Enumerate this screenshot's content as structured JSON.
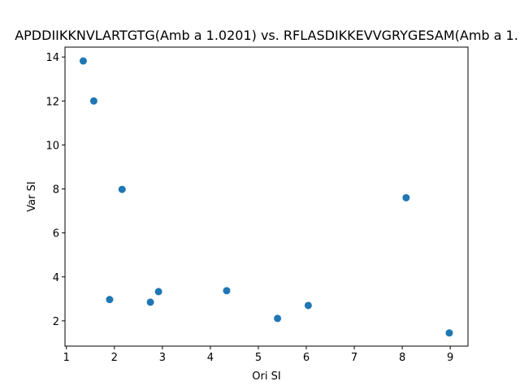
{
  "chart_data": {
    "type": "scatter",
    "title": "APDDIIKKNVLARTGTG(Amb a 1.0201) vs. RFLASDIKKEVVGRYGESAM(Amb a 1.",
    "xlabel": "Ori SI",
    "ylabel": "Var SI",
    "xlim": [
      0.97,
      9.37
    ],
    "ylim": [
      0.85,
      14.45
    ],
    "xticks": [
      1,
      2,
      3,
      4,
      5,
      6,
      7,
      8,
      9
    ],
    "yticks": [
      2,
      4,
      6,
      8,
      10,
      12,
      14
    ],
    "grid": false,
    "marker_color": "#1f77b4",
    "points": [
      {
        "x": 1.35,
        "y": 13.82
      },
      {
        "x": 1.57,
        "y": 12.0
      },
      {
        "x": 2.16,
        "y": 7.98
      },
      {
        "x": 1.9,
        "y": 2.97
      },
      {
        "x": 2.75,
        "y": 2.85
      },
      {
        "x": 2.92,
        "y": 3.33
      },
      {
        "x": 4.34,
        "y": 3.37
      },
      {
        "x": 5.4,
        "y": 2.11
      },
      {
        "x": 6.04,
        "y": 2.7
      },
      {
        "x": 8.08,
        "y": 7.6
      },
      {
        "x": 8.98,
        "y": 1.45
      }
    ]
  }
}
